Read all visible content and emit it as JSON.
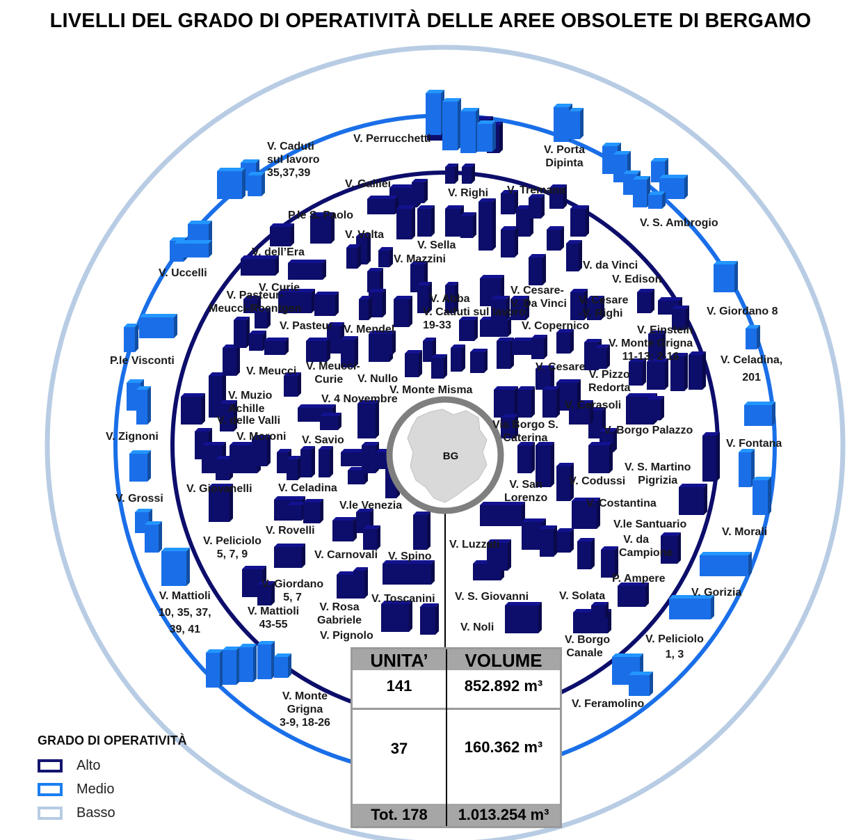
{
  "title": "LIVELLI DEL GRADO DI OPERATIVITÀ DELLE AREE OBSOLETE DI BERGAMO",
  "center_label": "BG",
  "colors": {
    "alto": "#0d0d6b",
    "medio": "#1a6fe8",
    "basso": "#b8cce4",
    "center_ring": "#7f7f7f",
    "center_fill": "#d9d9d9"
  },
  "legend": {
    "title": "GRADO DI OPERATIVITÀ",
    "items": [
      {
        "label": "Alto",
        "color": "#14146e"
      },
      {
        "label": "Medio",
        "color": "#1a7ef0"
      },
      {
        "label": "Basso",
        "color": "#b7cbe3"
      }
    ]
  },
  "table": {
    "headers": [
      "UNITA’",
      "VOLUME"
    ],
    "rows": [
      {
        "units": "141",
        "volume": "852.892 m³"
      },
      {
        "units": "37",
        "volume": "160.362 m³"
      }
    ],
    "total": {
      "units": "Tot. 178",
      "volume": "1.013.254 m³"
    }
  },
  "labels": {
    "perrucchetti": "V. Perrucchetti",
    "caduti_lavoro_35": [
      "V. Caduti",
      "sul lavoro",
      "35,37,39"
    ],
    "porta_dipinta": [
      "V. Porta",
      "Dipinta"
    ],
    "galilei": "V. Galilei",
    "righi": "V. Righi",
    "tremana": "V. Tremana",
    "pzle_s_paolo": "P.le S. Paolo",
    "s_ambrogio": "V. S. Ambrogio",
    "volta": "V. Volta",
    "sella": "V. Sella",
    "mazzini": "V. Mazzini",
    "dell_era": "V. dell’Era",
    "uccelli": "V. Uccelli",
    "da_vinci": "V. da Vinci",
    "edison": "V. Edison",
    "curie": "V. Curie",
    "pasteur_meucci": [
      "V. Pasteur-",
      "Meucci-Roentgen"
    ],
    "abba": "V. Abba",
    "caduti_lavoro_19": [
      "V. Caduti sul lavoro",
      "19-33"
    ],
    "cesare_da_vinci": [
      "V. Cesare-",
      "V. Da Vinci"
    ],
    "cesare_righi": [
      "V. Cesare",
      "-V. Righi"
    ],
    "giordano_8": "V. Giordano 8",
    "pasteur": "V. Pasteur",
    "mendel": "V. Mendel",
    "copernico": "V. Copernico",
    "einstein": "V. Einstein",
    "monte_grigna_11": [
      "V. Monte Grigna",
      "11-13; 2-16"
    ],
    "celadina_201": [
      "V. Celadina,",
      "201"
    ],
    "pzle_visconti": "P.le Visconti",
    "meucci": "V. Meucci",
    "meucci_curie": [
      "V. Meucci-",
      "Curie"
    ],
    "nullo": "V. Nullo",
    "cesare": "V. Cesare",
    "pizzo_redorta": [
      "V. Pizzo",
      "Redorta"
    ],
    "monte_misma": "V. Monte Misma",
    "muzio_achille": [
      "V. Muzio",
      "Achille"
    ],
    "quattro_novembre": "V. 4 Novembre",
    "cerasoli": "V. Cerasoli",
    "delle_valli": "V. delle Valli",
    "borgo_s_caterina": [
      "Via Borgo S.",
      "Caterina"
    ],
    "borgo_palazzo": "V. Borgo Palazzo",
    "zignoni": "V. Zignoni",
    "moroni": "V. Moroni",
    "savio": "V. Savio",
    "fontana": "V. Fontana",
    "s_martino": [
      "V. S. Martino",
      "Pigrizia"
    ],
    "giovanelli": "V. Giovanelli",
    "celadina": "V. Celadina",
    "san_lorenzo": [
      "V. San",
      "Lorenzo"
    ],
    "codussi": "V. Codussi",
    "grossi": "V. Grossi",
    "vle_venezia": "V.le Venezia",
    "costantina": "V. Costantina",
    "vle_santuario": "V.le Santuario",
    "rovelli": "V. Rovelli",
    "morali": "V. Morali",
    "peliciolo_579": [
      "V. Peliciolo",
      "5, 7, 9"
    ],
    "luzzati": "V. Luzzati",
    "da_campione": [
      "V. da",
      "Campione"
    ],
    "carnovali": "V. Carnovali",
    "spino": "V. Spino",
    "ampere": "P. Ampere",
    "mattioli_10": [
      "V. Mattioli",
      "10, 35, 37,",
      "39, 41"
    ],
    "giordano_57": [
      "V. Giordano",
      "5, 7"
    ],
    "gorizia": "V. Gorizia",
    "s_giovanni": "V. S. Giovanni",
    "solata": "V. Solata",
    "toscanini": "V. Toscanini",
    "mattioli_43": [
      "V. Mattioli",
      "43-55"
    ],
    "rosa_gabriele": [
      "V. Rosa",
      "Gabriele"
    ],
    "noli": "V. Noli",
    "peliciolo_13": [
      "V. Peliciolo",
      "1, 3"
    ],
    "pignolo": "V. Pignolo",
    "borgo_canale": [
      "V. Borgo",
      "Canale"
    ],
    "monte_grigna_3": [
      "V. Monte",
      "Grigna",
      "3-9, 18-26"
    ],
    "feramolino": "V. Feramolino"
  }
}
